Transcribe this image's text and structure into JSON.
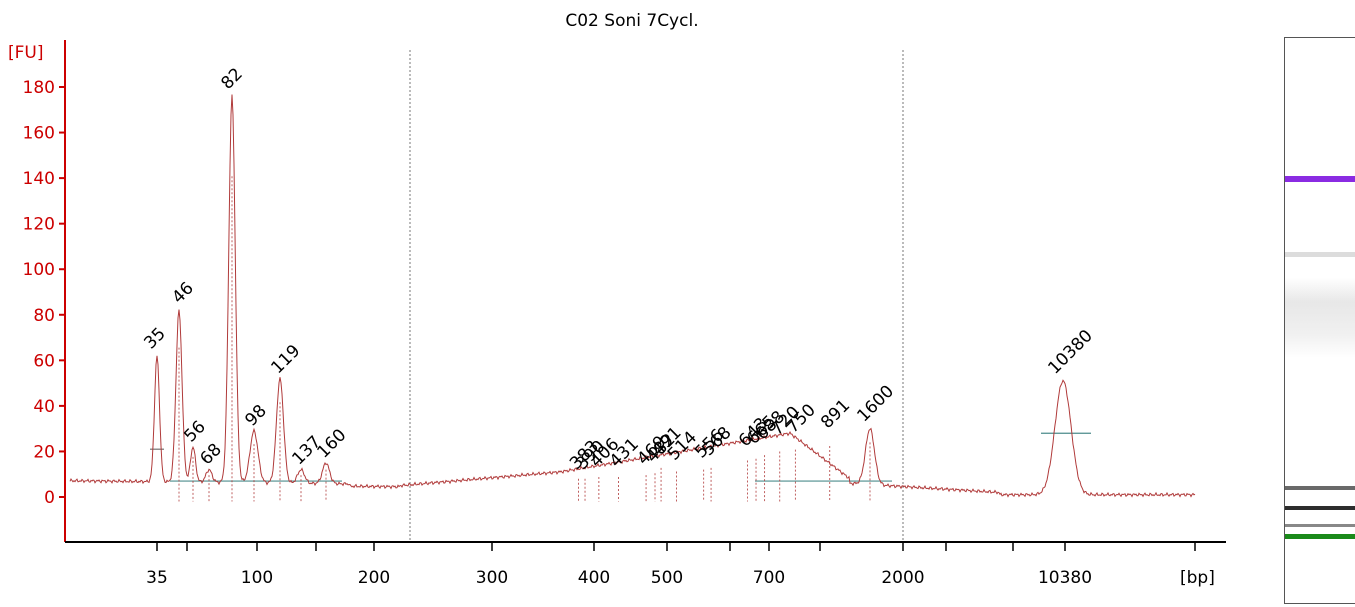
{
  "chart_data": {
    "type": "line",
    "title": "C02 Soni  7Cycl.",
    "ylabel": "[FU]",
    "xlabel": "[bp]",
    "ylim": [
      -20,
      190
    ],
    "y_ticks": [
      "0",
      "20",
      "40",
      "60",
      "80",
      "100",
      "120",
      "140",
      "160",
      "180"
    ],
    "x_ticks": [
      "35",
      "100",
      "200",
      "300",
      "400",
      "500",
      "700",
      "2000",
      "10380"
    ],
    "colors": {
      "trace": "#b03a3a",
      "axis": "#cc0000",
      "lower_marker": "#2a8a2a",
      "upper_marker": "#9b3bd9",
      "baseline": "#4c8c8c"
    },
    "peaks": [
      {
        "label": "35",
        "size_bp": 35,
        "fu": 62,
        "marker": "lower"
      },
      {
        "label": "46",
        "size_bp": 46,
        "fu": 82
      },
      {
        "label": "56",
        "size_bp": 56,
        "fu": 22
      },
      {
        "label": "68",
        "size_bp": 68,
        "fu": 12
      },
      {
        "label": "82",
        "size_bp": 82,
        "fu": 176
      },
      {
        "label": "98",
        "size_bp": 98,
        "fu": 29
      },
      {
        "label": "119",
        "size_bp": 119,
        "fu": 52
      },
      {
        "label": "137",
        "size_bp": 137,
        "fu": 12
      },
      {
        "label": "160",
        "size_bp": 160,
        "fu": 15
      },
      {
        "label": "383",
        "size_bp": 383,
        "fu": 10
      },
      {
        "label": "390",
        "size_bp": 390,
        "fu": 10
      },
      {
        "label": "406",
        "size_bp": 406,
        "fu": 11
      },
      {
        "label": "431",
        "size_bp": 431,
        "fu": 11
      },
      {
        "label": "469",
        "size_bp": 469,
        "fu": 12
      },
      {
        "label": "482",
        "size_bp": 482,
        "fu": 13
      },
      {
        "label": "491",
        "size_bp": 491,
        "fu": 16
      },
      {
        "label": "514",
        "size_bp": 514,
        "fu": 14
      },
      {
        "label": "556",
        "size_bp": 556,
        "fu": 15
      },
      {
        "label": "568",
        "size_bp": 568,
        "fu": 16
      },
      {
        "label": "643",
        "size_bp": 643,
        "fu": 20
      },
      {
        "label": "665",
        "size_bp": 665,
        "fu": 21
      },
      {
        "label": "688",
        "size_bp": 688,
        "fu": 23
      },
      {
        "label": "720",
        "size_bp": 720,
        "fu": 25
      },
      {
        "label": "750",
        "size_bp": 750,
        "fu": 26
      },
      {
        "label": "891",
        "size_bp": 891,
        "fu": 28
      },
      {
        "label": "1600",
        "size_bp": 1600,
        "fu": 30
      },
      {
        "label": "10380",
        "size_bp": 10380,
        "fu": 51,
        "marker": "upper"
      }
    ],
    "gel_bands": [
      {
        "color": "#8a2be2",
        "intensity": 1.0
      },
      {
        "color": "#9a9a9a",
        "intensity": 0.35
      },
      {
        "color": "#aaaaaa",
        "intensity": 0.3
      },
      {
        "color": "#444444",
        "intensity": 0.8
      },
      {
        "color": "#222222",
        "intensity": 0.95
      },
      {
        "color": "#555555",
        "intensity": 0.7
      },
      {
        "color": "#1a8a1a",
        "intensity": 1.0
      }
    ]
  }
}
